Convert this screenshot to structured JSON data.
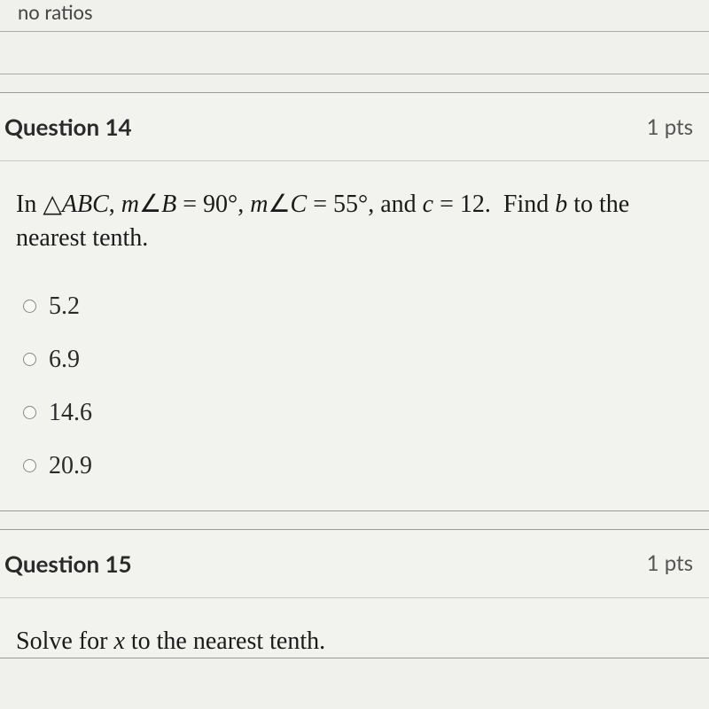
{
  "top_fragment": "no ratios",
  "q14": {
    "title": "Question 14",
    "points": "1 pts",
    "prompt_html": "In △<i>ABC</i>, <i>m</i>∠<i>B</i> = 90°, <i>m</i>∠<i>C</i> = 55°, and <i>c</i> = 12.&nbsp;&nbsp;Find <i>b</i> to the nearest tenth.",
    "options": [
      "5.2",
      "6.9",
      "14.6",
      "20.9"
    ]
  },
  "q15": {
    "title": "Question 15",
    "points": "1 pts",
    "prompt_html": "Solve for <i>x</i> to the nearest tenth."
  }
}
